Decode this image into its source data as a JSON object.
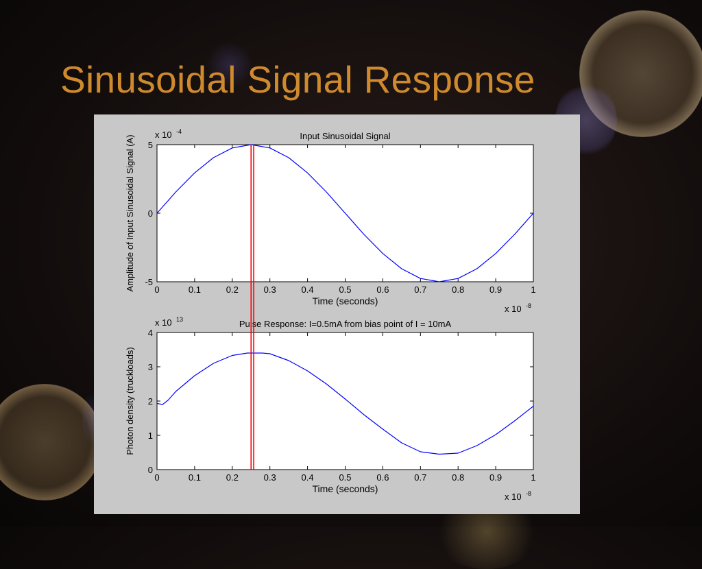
{
  "slide": {
    "title": "Sinusoidal Signal Response"
  },
  "chart_data": [
    {
      "type": "line",
      "title": "Input Sinusoidal Signal",
      "xlabel": "Time (seconds)",
      "ylabel": "Amplitude of Input Sinusoidal Signal (A)",
      "x_multiplier": "x 10",
      "x_exponent": "-8",
      "y_multiplier": "x 10",
      "y_exponent": "-4",
      "xlim": [
        0,
        1
      ],
      "ylim": [
        -5,
        5
      ],
      "x_ticks": [
        "0",
        "0.1",
        "0.2",
        "0.3",
        "0.4",
        "0.5",
        "0.6",
        "0.7",
        "0.8",
        "0.9",
        "1"
      ],
      "y_ticks": [
        {
          "value": -5,
          "label": "-5"
        },
        {
          "value": 0,
          "label": "0"
        },
        {
          "value": 5,
          "label": "5"
        }
      ],
      "series": [
        {
          "color": "#0000ff",
          "x": [
            0,
            0.05,
            0.1,
            0.15,
            0.2,
            0.25,
            0.3,
            0.35,
            0.4,
            0.45,
            0.5,
            0.55,
            0.6,
            0.65,
            0.7,
            0.75,
            0.8,
            0.85,
            0.9,
            0.95,
            1
          ],
          "y": [
            0,
            1.55,
            2.94,
            4.05,
            4.76,
            5.0,
            4.76,
            4.05,
            2.94,
            1.55,
            0,
            -1.55,
            -2.94,
            -4.05,
            -4.76,
            -5.0,
            -4.76,
            -4.05,
            -2.94,
            -1.55,
            0
          ]
        }
      ],
      "grid": false
    },
    {
      "type": "line",
      "title": "Pulse Response: I=0.5mA from bias point of I = 10mA",
      "xlabel": "Time (seconds)",
      "ylabel": "Photon density  (truckloads)",
      "x_multiplier": "x 10",
      "x_exponent": "-8",
      "y_multiplier": "x 10",
      "y_exponent": "13",
      "xlim": [
        0,
        1
      ],
      "ylim": [
        0,
        4
      ],
      "x_ticks": [
        "0",
        "0.1",
        "0.2",
        "0.3",
        "0.4",
        "0.5",
        "0.6",
        "0.7",
        "0.8",
        "0.9",
        "1"
      ],
      "y_ticks": [
        {
          "value": 0,
          "label": "0"
        },
        {
          "value": 1,
          "label": "1"
        },
        {
          "value": 2,
          "label": "2"
        },
        {
          "value": 3,
          "label": "3"
        },
        {
          "value": 4,
          "label": "4"
        }
      ],
      "series": [
        {
          "color": "#0000ff",
          "x": [
            0,
            0.015,
            0.03,
            0.05,
            0.1,
            0.15,
            0.2,
            0.24,
            0.28,
            0.3,
            0.35,
            0.4,
            0.45,
            0.5,
            0.55,
            0.6,
            0.65,
            0.7,
            0.75,
            0.8,
            0.85,
            0.9,
            0.95,
            1
          ],
          "y": [
            1.93,
            1.9,
            2.03,
            2.28,
            2.74,
            3.1,
            3.33,
            3.4,
            3.4,
            3.38,
            3.18,
            2.88,
            2.5,
            2.06,
            1.6,
            1.18,
            0.78,
            0.52,
            0.45,
            0.48,
            0.7,
            1.02,
            1.42,
            1.85
          ]
        }
      ],
      "grid": false
    }
  ],
  "markers": {
    "color": "#ff0000",
    "x": [
      0.25,
      0.257
    ]
  }
}
